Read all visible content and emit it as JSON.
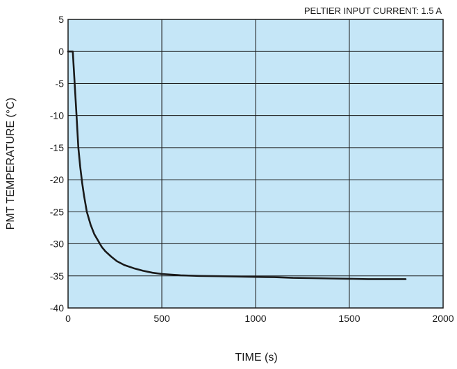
{
  "chart_data": {
    "type": "line",
    "title": "",
    "annotation": "PELTIER INPUT CURRENT: 1.5 A",
    "xlabel": "TIME (s)",
    "ylabel": "PMT TEMPERATURE (°C)",
    "xlim": [
      0,
      2000
    ],
    "ylim": [
      -40,
      5
    ],
    "x_ticks": [
      0,
      500,
      1000,
      1500,
      2000
    ],
    "y_ticks": [
      5,
      0,
      -5,
      -10,
      -15,
      -20,
      -25,
      -30,
      -35,
      -40
    ],
    "grid": true,
    "legend": "none",
    "colors": {
      "plot_background": "#c5e6f7",
      "line": "#1a1a1a",
      "grid": "#1a1a1a"
    },
    "series": [
      {
        "x": [
          0,
          25,
          35,
          45,
          55,
          65,
          75,
          85,
          100,
          120,
          140,
          160,
          180,
          200,
          230,
          260,
          300,
          350,
          400,
          450,
          500,
          600,
          700,
          800,
          900,
          1000,
          1100,
          1200,
          1300,
          1400,
          1500,
          1600,
          1700,
          1800
        ],
        "y": [
          0,
          0,
          -5,
          -10,
          -15,
          -18,
          -20.5,
          -22.5,
          -25,
          -27,
          -28.5,
          -29.5,
          -30.5,
          -31.2,
          -32,
          -32.7,
          -33.3,
          -33.8,
          -34.2,
          -34.5,
          -34.7,
          -34.9,
          -35.0,
          -35.05,
          -35.1,
          -35.15,
          -35.2,
          -35.3,
          -35.35,
          -35.4,
          -35.45,
          -35.5,
          -35.5,
          -35.5
        ]
      }
    ]
  }
}
